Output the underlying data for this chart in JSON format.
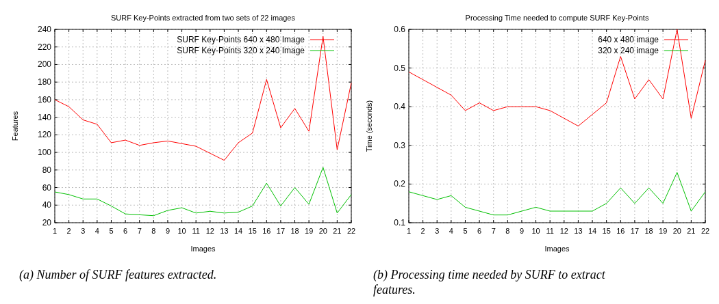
{
  "chart_data": [
    {
      "type": "line",
      "title": "SURF Key-Points extracted from two sets of 22 images",
      "xlabel": "Images",
      "ylabel": "Features",
      "x": [
        1,
        2,
        3,
        4,
        5,
        6,
        7,
        8,
        9,
        10,
        11,
        12,
        13,
        14,
        15,
        16,
        17,
        18,
        19,
        20,
        21,
        22
      ],
      "xlim": [
        1,
        22
      ],
      "xticks": [
        1,
        2,
        3,
        4,
        5,
        6,
        7,
        8,
        9,
        10,
        11,
        12,
        13,
        14,
        15,
        16,
        17,
        18,
        19,
        20,
        21,
        22
      ],
      "ylim": [
        20,
        240
      ],
      "yticks": [
        20,
        40,
        60,
        80,
        100,
        120,
        140,
        160,
        180,
        200,
        220,
        240
      ],
      "grid": true,
      "legend": "top right",
      "marker": "none",
      "annotations": [
        "(a) Number of SURF features extracted."
      ],
      "series": [
        {
          "name": "SURF Key-Points 640 x 480 Image",
          "color": "#ff0000",
          "values": [
            160,
            152,
            137,
            132,
            111,
            114,
            108,
            111,
            113,
            110,
            107,
            99,
            91,
            111,
            122,
            183,
            128,
            150,
            124,
            232,
            103,
            179
          ]
        },
        {
          "name": "SURF Key-Points 320 x 240 Image",
          "color": "#00c000",
          "values": [
            55,
            52,
            47,
            47,
            39,
            30,
            29,
            28,
            34,
            37,
            31,
            33,
            31,
            32,
            39,
            65,
            39,
            60,
            41,
            83,
            31,
            52
          ]
        }
      ]
    },
    {
      "type": "line",
      "title": "Processing Time needed to compute SURF Key-Points",
      "xlabel": "Images",
      "ylabel": "Time (seconds)",
      "x": [
        1,
        2,
        3,
        4,
        5,
        6,
        7,
        8,
        9,
        10,
        11,
        12,
        13,
        14,
        15,
        16,
        17,
        18,
        19,
        20,
        21,
        22
      ],
      "xlim": [
        1,
        22
      ],
      "xticks": [
        1,
        2,
        3,
        4,
        5,
        6,
        7,
        8,
        9,
        10,
        11,
        12,
        13,
        14,
        15,
        16,
        17,
        18,
        19,
        20,
        21,
        22
      ],
      "ylim": [
        0.1,
        0.6
      ],
      "yticks": [
        0.1,
        0.2,
        0.3,
        0.4,
        0.5,
        0.6
      ],
      "grid": true,
      "legend": "top right",
      "marker": "none",
      "annotations": [
        "(b) Processing time needed by SURF to extract features."
      ],
      "series": [
        {
          "name": "640 x 480 image",
          "color": "#ff0000",
          "values": [
            0.49,
            0.47,
            0.45,
            0.43,
            0.39,
            0.41,
            0.39,
            0.4,
            0.4,
            0.4,
            0.39,
            0.37,
            0.35,
            0.38,
            0.41,
            0.53,
            0.42,
            0.47,
            0.42,
            0.6,
            0.37,
            0.52
          ]
        },
        {
          "name": "320 x 240 image",
          "color": "#00c000",
          "values": [
            0.18,
            0.17,
            0.16,
            0.17,
            0.14,
            0.13,
            0.12,
            0.12,
            0.13,
            0.14,
            0.13,
            0.13,
            0.13,
            0.13,
            0.15,
            0.19,
            0.15,
            0.19,
            0.15,
            0.23,
            0.13,
            0.18
          ]
        }
      ]
    }
  ]
}
